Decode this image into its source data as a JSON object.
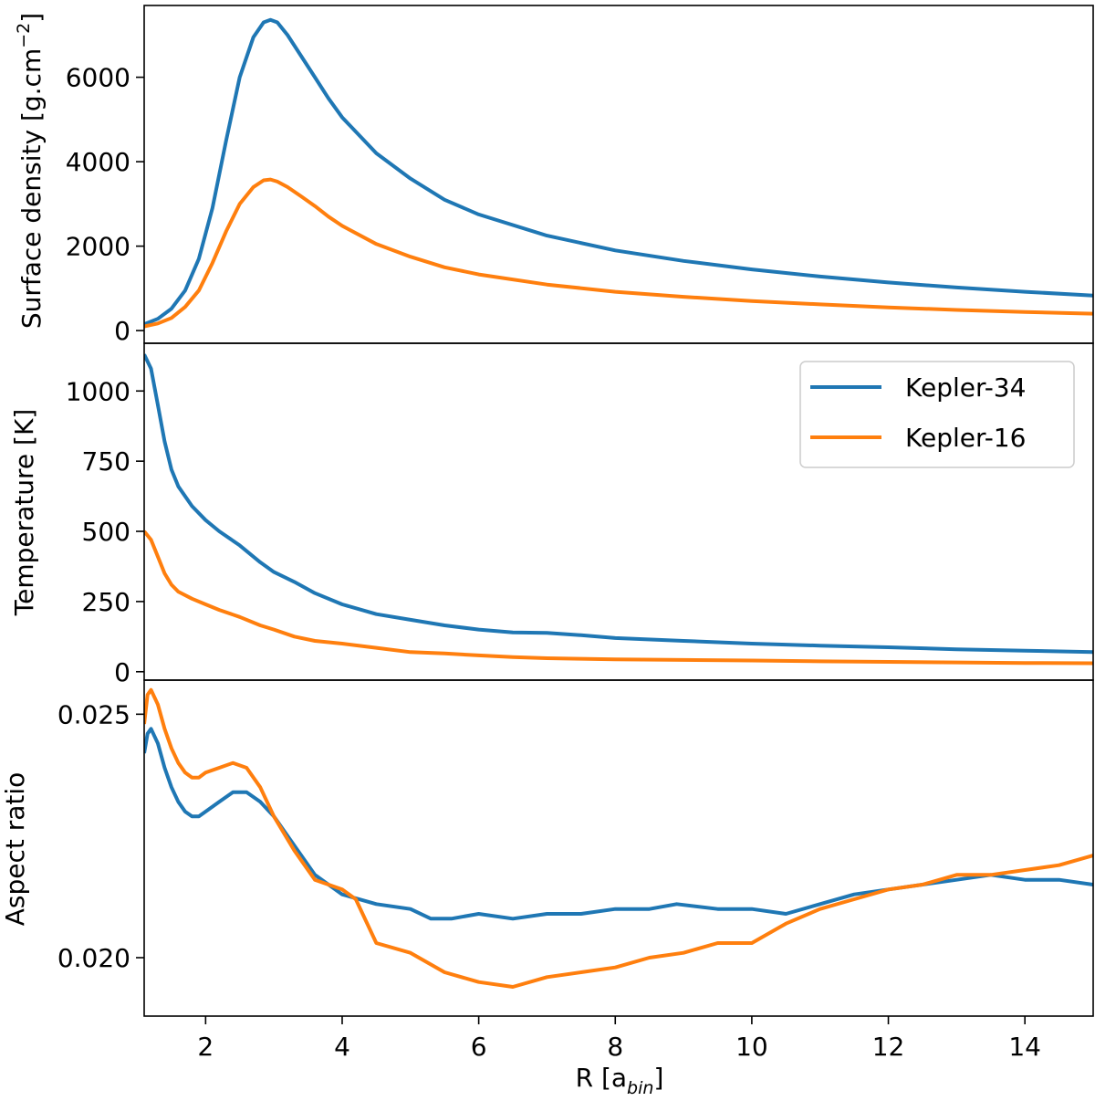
{
  "chart_data": [
    {
      "type": "line",
      "panel": "top",
      "ylabel": "Surface density [g.cm",
      "ylabel_sup": "−2",
      "ylabel_suffix": "]",
      "xlim": [
        1.1,
        15.0
      ],
      "ylim": [
        -300,
        7700
      ],
      "yticks": [
        0,
        2000,
        4000,
        6000
      ],
      "ytick_labels": [
        "0",
        "2000",
        "4000",
        "6000"
      ],
      "series": [
        {
          "name": "Kepler-34",
          "color": "#1f77b4",
          "x": [
            1.1,
            1.3,
            1.5,
            1.7,
            1.9,
            2.1,
            2.3,
            2.5,
            2.7,
            2.85,
            2.95,
            3.05,
            3.2,
            3.4,
            3.6,
            3.8,
            4.0,
            4.5,
            5.0,
            5.5,
            6.0,
            7.0,
            8.0,
            9.0,
            10.0,
            11.0,
            12.0,
            13.0,
            14.0,
            15.0
          ],
          "y": [
            150,
            280,
            520,
            950,
            1700,
            2900,
            4500,
            6000,
            6950,
            7300,
            7360,
            7300,
            7000,
            6500,
            6000,
            5500,
            5050,
            4200,
            3600,
            3100,
            2750,
            2250,
            1900,
            1650,
            1450,
            1280,
            1140,
            1020,
            920,
            830
          ]
        },
        {
          "name": "Kepler-16",
          "color": "#ff7f0e",
          "x": [
            1.1,
            1.3,
            1.5,
            1.7,
            1.9,
            2.1,
            2.3,
            2.5,
            2.7,
            2.85,
            2.95,
            3.05,
            3.2,
            3.4,
            3.6,
            3.8,
            4.0,
            4.5,
            5.0,
            5.5,
            6.0,
            7.0,
            8.0,
            9.0,
            10.0,
            11.0,
            12.0,
            13.0,
            14.0,
            15.0
          ],
          "y": [
            100,
            170,
            300,
            560,
            950,
            1600,
            2350,
            3000,
            3400,
            3560,
            3580,
            3530,
            3400,
            3180,
            2950,
            2700,
            2480,
            2050,
            1750,
            1500,
            1330,
            1090,
            920,
            800,
            700,
            620,
            550,
            490,
            440,
            400
          ]
        }
      ]
    },
    {
      "type": "line",
      "panel": "middle",
      "ylabel": "Temperature [K]",
      "xlim": [
        1.1,
        15.0
      ],
      "ylim": [
        -30,
        1170
      ],
      "yticks": [
        0,
        250,
        500,
        750,
        1000
      ],
      "ytick_labels": [
        "0",
        "250",
        "500",
        "750",
        "1000"
      ],
      "legend": {
        "position": "top-right",
        "entries": [
          "Kepler-34",
          "Kepler-16"
        ]
      },
      "series": [
        {
          "name": "Kepler-34",
          "color": "#1f77b4",
          "x": [
            1.1,
            1.2,
            1.3,
            1.4,
            1.5,
            1.6,
            1.8,
            2.0,
            2.2,
            2.5,
            2.8,
            3.0,
            3.3,
            3.6,
            4.0,
            4.5,
            5.0,
            5.5,
            6.0,
            6.5,
            7.0,
            7.5,
            8.0,
            9.0,
            10.0,
            11.0,
            12.0,
            13.0,
            14.0,
            15.0
          ],
          "y": [
            1130,
            1080,
            950,
            820,
            720,
            660,
            590,
            540,
            500,
            450,
            390,
            355,
            320,
            280,
            240,
            205,
            185,
            165,
            150,
            140,
            138,
            130,
            120,
            110,
            100,
            93,
            87,
            80,
            75,
            70
          ]
        },
        {
          "name": "Kepler-16",
          "color": "#ff7f0e",
          "x": [
            1.1,
            1.2,
            1.3,
            1.4,
            1.5,
            1.6,
            1.8,
            2.0,
            2.2,
            2.5,
            2.8,
            3.0,
            3.3,
            3.6,
            4.0,
            4.5,
            5.0,
            5.5,
            6.0,
            6.5,
            7.0,
            7.5,
            8.0,
            9.0,
            10.0,
            11.0,
            12.0,
            13.0,
            14.0,
            15.0
          ],
          "y": [
            500,
            470,
            410,
            350,
            310,
            285,
            260,
            240,
            220,
            195,
            165,
            150,
            125,
            110,
            100,
            85,
            70,
            65,
            58,
            52,
            48,
            46,
            44,
            42,
            40,
            37,
            35,
            33,
            31,
            30
          ]
        }
      ]
    },
    {
      "type": "line",
      "panel": "bottom",
      "ylabel": "Aspect ratio",
      "xlabel": "R [a",
      "xlabel_sub": "bin",
      "xlabel_suffix": "]",
      "xlim": [
        1.1,
        15.0
      ],
      "ylim": [
        0.0188,
        0.0257
      ],
      "yticks": [
        0.02,
        0.025
      ],
      "ytick_labels": [
        "0.020",
        "0.025"
      ],
      "xticks": [
        2,
        4,
        6,
        8,
        10,
        12,
        14
      ],
      "xtick_labels": [
        "2",
        "4",
        "6",
        "8",
        "10",
        "12",
        "14"
      ],
      "series": [
        {
          "name": "Kepler-34",
          "color": "#1f77b4",
          "x": [
            1.1,
            1.15,
            1.2,
            1.3,
            1.4,
            1.5,
            1.6,
            1.7,
            1.8,
            1.9,
            2.0,
            2.2,
            2.4,
            2.6,
            2.8,
            3.0,
            3.3,
            3.6,
            4.0,
            4.5,
            5.0,
            5.3,
            5.6,
            6.0,
            6.5,
            7.0,
            7.5,
            8.0,
            8.5,
            8.9,
            9.5,
            10.0,
            10.5,
            11.0,
            11.5,
            12.0,
            12.5,
            13.0,
            13.5,
            14.0,
            14.5,
            15.0
          ],
          "y": [
            0.0242,
            0.0246,
            0.0247,
            0.0244,
            0.0239,
            0.0235,
            0.0232,
            0.023,
            0.0229,
            0.0229,
            0.023,
            0.0232,
            0.0234,
            0.0234,
            0.0232,
            0.0229,
            0.0223,
            0.0217,
            0.0213,
            0.0211,
            0.021,
            0.0208,
            0.0208,
            0.0209,
            0.0208,
            0.0209,
            0.0209,
            0.021,
            0.021,
            0.0211,
            0.021,
            0.021,
            0.0209,
            0.0211,
            0.0213,
            0.0214,
            0.0215,
            0.0216,
            0.0217,
            0.0216,
            0.0216,
            0.0215
          ]
        },
        {
          "name": "Kepler-16",
          "color": "#ff7f0e",
          "x": [
            1.1,
            1.15,
            1.2,
            1.3,
            1.4,
            1.5,
            1.6,
            1.7,
            1.8,
            1.9,
            2.0,
            2.2,
            2.4,
            2.6,
            2.8,
            3.0,
            3.3,
            3.6,
            4.0,
            4.2,
            4.5,
            5.0,
            5.5,
            6.0,
            6.5,
            7.0,
            7.5,
            8.0,
            8.5,
            9.0,
            9.5,
            10.0,
            10.5,
            11.0,
            11.5,
            12.0,
            12.5,
            13.0,
            13.5,
            14.0,
            14.5,
            15.0
          ],
          "y": [
            0.0248,
            0.0254,
            0.0255,
            0.0252,
            0.0247,
            0.0243,
            0.024,
            0.0238,
            0.0237,
            0.0237,
            0.0238,
            0.0239,
            0.024,
            0.0239,
            0.0235,
            0.0229,
            0.0222,
            0.0216,
            0.0214,
            0.0212,
            0.0203,
            0.0201,
            0.0197,
            0.0195,
            0.0194,
            0.0196,
            0.0197,
            0.0198,
            0.02,
            0.0201,
            0.0203,
            0.0203,
            0.0207,
            0.021,
            0.0212,
            0.0214,
            0.0215,
            0.0217,
            0.0217,
            0.0218,
            0.0219,
            0.0221
          ]
        }
      ]
    }
  ]
}
